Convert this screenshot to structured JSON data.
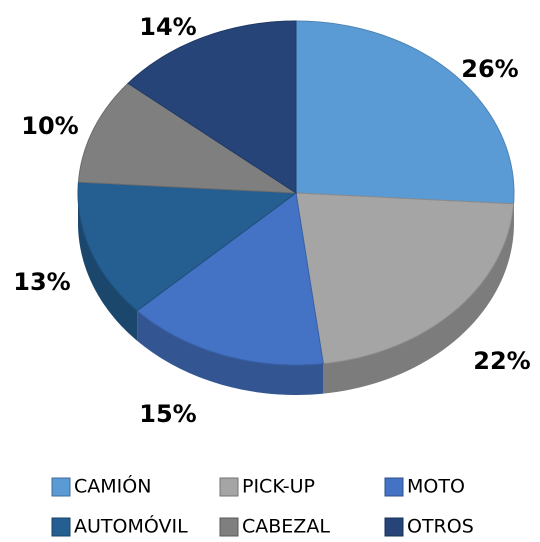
{
  "chart_data": {
    "type": "pie",
    "categories": [
      "CAMIÓN",
      "PICK-UP",
      "MOTO",
      "AUTOMÓVIL",
      "CABEZAL",
      "OTROS"
    ],
    "values": [
      26,
      22,
      15,
      13,
      10,
      14
    ],
    "value_labels": [
      "26%",
      "22%",
      "15%",
      "13%",
      "10%",
      "14%"
    ],
    "colors": [
      "#5b9bd5",
      "#a5a5a5",
      "#4472c4",
      "#255e91",
      "#7f7f7f",
      "#264478"
    ],
    "legend": "bottom"
  }
}
